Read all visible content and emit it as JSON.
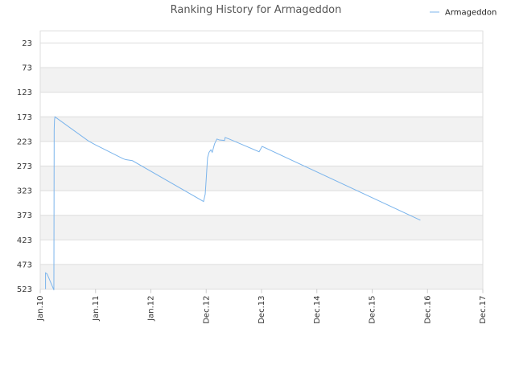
{
  "chart_data": {
    "type": "line",
    "title": "Ranking History for Armageddon",
    "legend": {
      "position": "top-right",
      "entries": [
        "Armageddon"
      ]
    },
    "colors": {
      "series": "#7cb5ec",
      "band": "#f2f2f2",
      "grid": "#dddddd"
    },
    "grid": true,
    "y_axis": {
      "reversed": true,
      "ylim": [
        523,
        3
      ],
      "ticks": [
        23,
        73,
        123,
        173,
        223,
        273,
        323,
        373,
        423,
        473,
        523
      ]
    },
    "x_axis": {
      "type": "date",
      "xlim": [
        "2010-01-01",
        "2017-12-01"
      ],
      "ticks": [
        {
          "label": "Jan.10",
          "date": "2010-01-01"
        },
        {
          "label": "Jan.11",
          "date": "2011-01-01"
        },
        {
          "label": "Jan.12",
          "date": "2012-01-01"
        },
        {
          "label": "Dec.12",
          "date": "2012-12-01"
        },
        {
          "label": "Dec.13",
          "date": "2013-12-01"
        },
        {
          "label": "Dec.14",
          "date": "2014-12-01"
        },
        {
          "label": "Dec.15",
          "date": "2015-12-01"
        },
        {
          "label": "Dec.16",
          "date": "2016-12-01"
        },
        {
          "label": "Dec.17",
          "date": "2017-12-01"
        }
      ]
    },
    "series": [
      {
        "name": "Armageddon",
        "points": [
          {
            "x": "2010-02-05",
            "y": 523
          },
          {
            "x": "2010-02-05",
            "y": 490
          },
          {
            "x": "2010-02-15",
            "y": 492
          },
          {
            "x": "2010-03-30",
            "y": 523
          },
          {
            "x": "2010-04-01",
            "y": 525
          },
          {
            "x": "2010-04-03",
            "y": 200
          },
          {
            "x": "2010-04-05",
            "y": 180
          },
          {
            "x": "2010-04-08",
            "y": 173
          },
          {
            "x": "2010-11-15",
            "y": 222
          },
          {
            "x": "2011-01-01",
            "y": 230
          },
          {
            "x": "2011-07-01",
            "y": 258
          },
          {
            "x": "2011-07-20",
            "y": 260
          },
          {
            "x": "2011-09-01",
            "y": 262
          },
          {
            "x": "2012-11-15",
            "y": 345
          },
          {
            "x": "2012-11-25",
            "y": 330
          },
          {
            "x": "2012-12-01",
            "y": 300
          },
          {
            "x": "2012-12-05",
            "y": 280
          },
          {
            "x": "2012-12-10",
            "y": 256
          },
          {
            "x": "2012-12-20",
            "y": 245
          },
          {
            "x": "2013-01-01",
            "y": 240
          },
          {
            "x": "2013-01-10",
            "y": 245
          },
          {
            "x": "2013-01-25",
            "y": 228
          },
          {
            "x": "2013-02-10",
            "y": 218
          },
          {
            "x": "2013-02-25",
            "y": 220
          },
          {
            "x": "2013-04-01",
            "y": 221
          },
          {
            "x": "2013-04-05",
            "y": 215
          },
          {
            "x": "2013-05-01",
            "y": 218
          },
          {
            "x": "2013-11-15",
            "y": 244
          },
          {
            "x": "2013-12-05",
            "y": 233
          },
          {
            "x": "2016-10-15",
            "y": 383
          }
        ]
      }
    ]
  }
}
